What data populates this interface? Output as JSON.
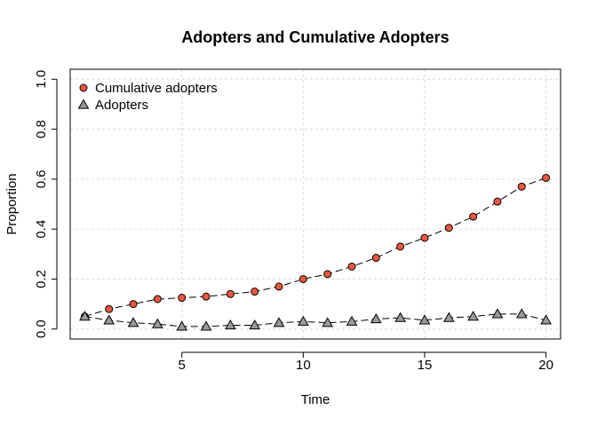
{
  "chart_data": {
    "type": "line",
    "title": "Adopters and Cumulative Adopters",
    "xlabel": "Time",
    "ylabel": "Proportion",
    "xlim": [
      0.4,
      20.6
    ],
    "ylim": [
      -0.04,
      1.04
    ],
    "xticks": [
      5,
      10,
      15,
      20
    ],
    "yticks": [
      0.0,
      0.2,
      0.4,
      0.6,
      0.8,
      1.0
    ],
    "ytick_labels": [
      "0.0",
      "0.2",
      "0.4",
      "0.6",
      "0.8",
      "1.0"
    ],
    "grid": true,
    "legend_position": "top-left",
    "x": [
      1,
      2,
      3,
      4,
      5,
      6,
      7,
      8,
      9,
      10,
      11,
      12,
      13,
      14,
      15,
      16,
      17,
      18,
      19,
      20
    ],
    "series": [
      {
        "name": "Cumulative adopters",
        "marker": "circle",
        "color": "#f0573b",
        "values": [
          0.05,
          0.08,
          0.1,
          0.12,
          0.125,
          0.13,
          0.14,
          0.15,
          0.17,
          0.2,
          0.22,
          0.25,
          0.285,
          0.33,
          0.365,
          0.405,
          0.45,
          0.51,
          0.57,
          0.605
        ]
      },
      {
        "name": "Adopters",
        "marker": "triangle",
        "color": "#9a9a9a",
        "values": [
          0.05,
          0.035,
          0.025,
          0.02,
          0.01,
          0.01,
          0.015,
          0.015,
          0.025,
          0.03,
          0.025,
          0.03,
          0.04,
          0.045,
          0.035,
          0.045,
          0.05,
          0.06,
          0.06,
          0.035
        ]
      }
    ]
  }
}
